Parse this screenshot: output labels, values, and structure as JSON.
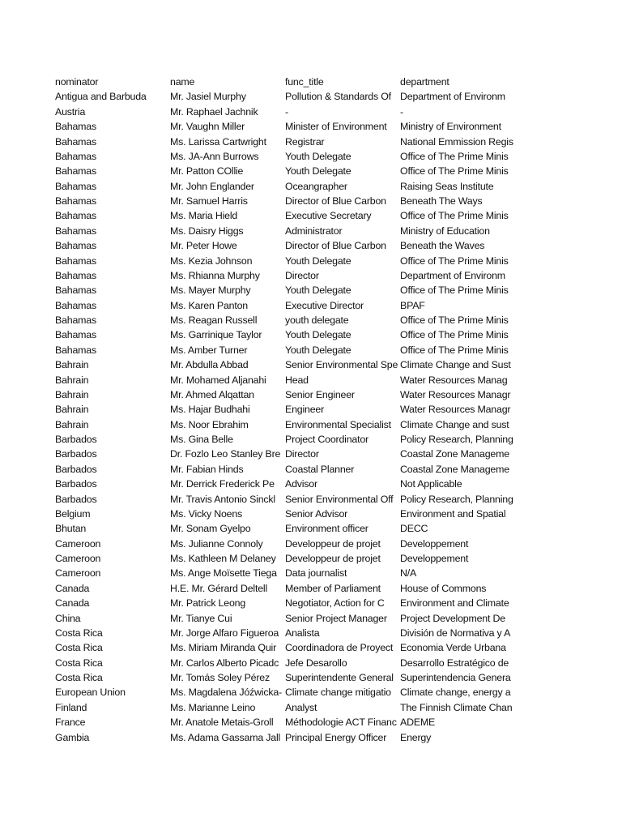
{
  "headers": [
    "nominator",
    "name",
    "func_title",
    "department"
  ],
  "rows": [
    [
      "Antigua and Barbuda",
      "Mr. Jasiel Murphy",
      "Pollution & Standards Of",
      "Department of Environm"
    ],
    [
      "Austria",
      "Mr. Raphael Jachnik",
      "-",
      "-"
    ],
    [
      "Bahamas",
      "Mr. Vaughn Miller",
      "Minister of Environment",
      "Ministry of Environment"
    ],
    [
      "Bahamas",
      "Ms. Larissa Cartwright",
      "Registrar",
      "National Emmission Regis"
    ],
    [
      "Bahamas",
      "Ms. JA-Ann Burrows",
      "Youth Delegate",
      "Office of The Prime Minis"
    ],
    [
      "Bahamas",
      "Mr. Patton COllie",
      "Youth Delegate",
      "Office of The Prime Minis"
    ],
    [
      "Bahamas",
      "Mr. John Englander",
      "Oceangrapher",
      "Raising Seas Institute"
    ],
    [
      "Bahamas",
      "Mr. Samuel Harris",
      "Director of Blue Carbon",
      "Beneath The Ways"
    ],
    [
      "Bahamas",
      "Ms. Maria Hield",
      "Executive Secretary",
      "Office of The Prime Minis"
    ],
    [
      "Bahamas",
      "Ms. Daisry Higgs",
      "Administrator",
      "Ministry of Education"
    ],
    [
      "Bahamas",
      "Mr. Peter Howe",
      "Director of Blue Carbon",
      "Beneath the Waves"
    ],
    [
      "Bahamas",
      "Ms. Kezia Johnson",
      "Youth Delegate",
      "Office of The Prime Minis"
    ],
    [
      "Bahamas",
      "Ms. Rhianna Murphy",
      "Director",
      "Department of Environm"
    ],
    [
      "Bahamas",
      "Ms. Mayer Murphy",
      "Youth Delegate",
      "Office of The Prime Minis"
    ],
    [
      "Bahamas",
      "Ms. Karen Panton",
      "Executive Director",
      "BPAF"
    ],
    [
      "Bahamas",
      "Ms. Reagan Russell",
      "youth delegate",
      "Office of The Prime Minis"
    ],
    [
      "Bahamas",
      "Ms. Garrinique Taylor",
      "Youth Delegate",
      "Office of The Prime Minis"
    ],
    [
      "Bahamas",
      "Ms. Amber Turner",
      "Youth Delegate",
      "Office of The Prime Minis"
    ],
    [
      "Bahrain",
      "Mr. Abdulla Abbad",
      "Senior Environmental Spe",
      "Climate Change and Sust"
    ],
    [
      "Bahrain",
      "Mr. Mohamed Aljanahi",
      "Head",
      "Water Resources Manag"
    ],
    [
      "Bahrain",
      "Mr. Ahmed Alqattan",
      "Senior Engineer",
      "Water Resources Managr"
    ],
    [
      "Bahrain",
      "Ms. Hajar Budhahi",
      "Engineer",
      "Water Resources Managr"
    ],
    [
      "Bahrain",
      "Ms. Noor Ebrahim",
      "Environmental Specialist",
      "Climate Change and sust"
    ],
    [
      "Barbados",
      "Ms. Gina Belle",
      "Project Coordinator",
      "Policy Research, Planning"
    ],
    [
      "Barbados",
      "Dr. Fozlo Leo Stanley Bre",
      "Director",
      "Coastal Zone Manageme"
    ],
    [
      "Barbados",
      "Mr. Fabian Hinds",
      "Coastal Planner",
      "Coastal Zone Manageme"
    ],
    [
      "Barbados",
      "Mr. Derrick Frederick Pe",
      "Advisor",
      "Not Applicable"
    ],
    [
      "Barbados",
      "Mr. Travis Antonio Sinckl",
      "Senior Environmental Off",
      "Policy Research, Planning"
    ],
    [
      "Belgium",
      "Ms. Vicky Noens",
      "Senior Advisor",
      "Environment and Spatial"
    ],
    [
      "Bhutan",
      "Mr. Sonam Gyelpo",
      "Environment officer",
      "DECC"
    ],
    [
      "Cameroon",
      "Ms. Julianne Connoly",
      "Developpeur de projet",
      "Developpement"
    ],
    [
      "Cameroon",
      "Ms. Kathleen M Delaney",
      "Developpeur de projet",
      "Developpement"
    ],
    [
      "Cameroon",
      "Ms. Ange Moïsette Tiega",
      "Data journalist",
      "N/A"
    ],
    [
      "Canada",
      "H.E. Mr. Gérard Deltell",
      "Member of Parliament",
      "House of Commons"
    ],
    [
      "Canada",
      "Mr. Patrick Leong",
      "Negotiator, Action for C",
      "Environment and Climate"
    ],
    [
      "China",
      "Mr. Tianye Cui",
      "Senior Project Manager",
      "Project Development De"
    ],
    [
      "Costa Rica",
      "Mr. Jorge Alfaro Figueroa",
      "Analista",
      "División de Normativa y A"
    ],
    [
      "Costa Rica",
      "Ms. Miriam Miranda Quir",
      "Coordinadora de Proyect",
      "Economia Verde Urbana"
    ],
    [
      "Costa Rica",
      "Mr. Carlos Alberto Picadc",
      "Jefe Desarollo",
      "Desarrollo Estratégico de"
    ],
    [
      "Costa Rica",
      "Mr. Tomás Soley Pérez",
      "Superintendente General",
      "Superintendencia Genera"
    ],
    [
      "European Union",
      "Ms. Magdalena Jóźwicka-",
      "Climate change mitigatio",
      "Climate change, energy a"
    ],
    [
      "Finland",
      "Ms. Marianne Leino",
      "Analyst",
      "The Finnish Climate Chan"
    ],
    [
      "France",
      "Mr. Anatole Metais-Groll",
      "Méthodologie ACT Financ",
      "ADEME"
    ],
    [
      "Gambia",
      "Ms. Adama Gassama Jall",
      "Principal Energy Officer",
      "Energy"
    ]
  ]
}
